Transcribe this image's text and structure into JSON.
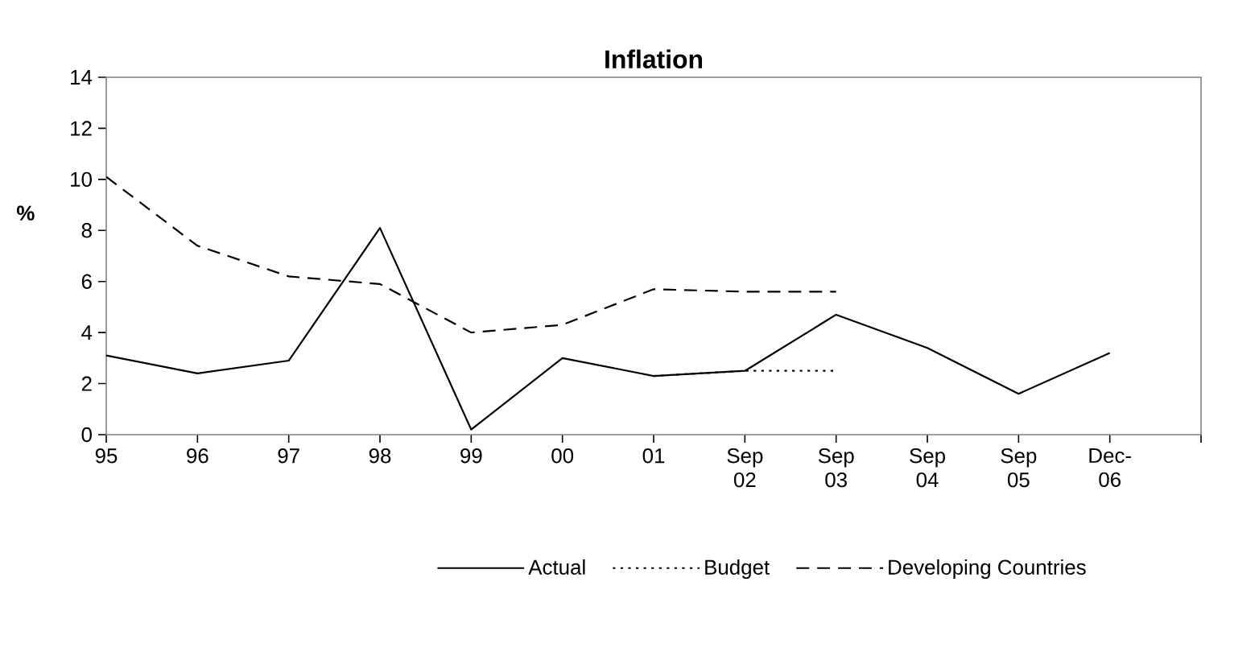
{
  "chart_data": {
    "type": "line",
    "title": "Inflation",
    "ylabel": "%",
    "categories": [
      "95",
      "96",
      "97",
      "98",
      "99",
      "00",
      "01",
      "Sep 02",
      "Sep 03",
      "Sep 04",
      "Sep 05",
      "Dec-06",
      null
    ],
    "series": [
      {
        "name": "Actual",
        "color": "#000000",
        "line_style": "solid",
        "values": [
          3.1,
          2.4,
          2.9,
          8.1,
          0.2,
          3.0,
          2.3,
          2.5,
          4.7,
          3.4,
          1.6,
          3.2,
          null
        ]
      },
      {
        "name": "Budget",
        "color": "#000000",
        "line_style": "dotted",
        "values": [
          null,
          null,
          null,
          null,
          null,
          null,
          2.3,
          2.5,
          2.5,
          null,
          null,
          null,
          null
        ]
      },
      {
        "name": "Developing Countries",
        "color": "#000000",
        "line_style": "dashed",
        "values": [
          10.1,
          7.4,
          6.2,
          5.9,
          4.0,
          4.3,
          5.7,
          5.6,
          5.6,
          null,
          null,
          null,
          null
        ]
      }
    ],
    "ylim": [
      0,
      14
    ],
    "yticks": [
      0,
      2,
      4,
      6,
      8,
      10,
      12,
      14
    ],
    "legend": "bottom",
    "marker": "none"
  }
}
